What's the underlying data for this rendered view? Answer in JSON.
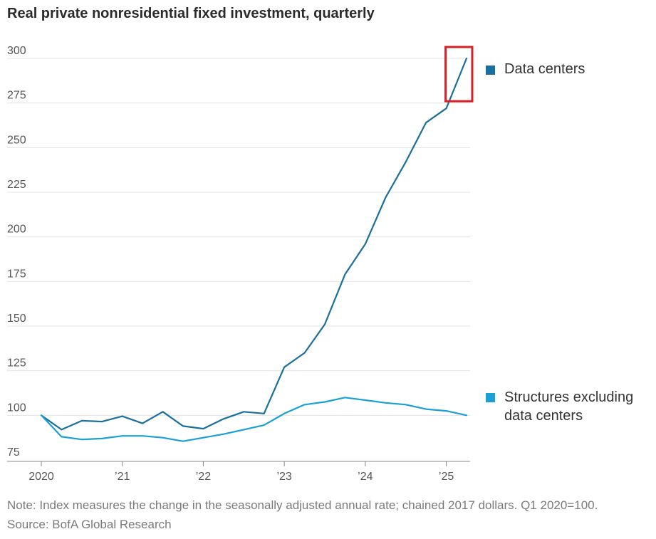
{
  "title": "Real private nonresidential fixed investment, quarterly",
  "note": "Note: Index measures the change in the seasonally adjusted annual rate; chained 2017 dollars. Q1 2020=100.",
  "source": "Source: BofA Global Research",
  "chart_data": {
    "type": "line",
    "x": [
      2020.0,
      2020.25,
      2020.5,
      2020.75,
      2021.0,
      2021.25,
      2021.5,
      2021.75,
      2022.0,
      2022.25,
      2022.5,
      2022.75,
      2023.0,
      2023.25,
      2023.5,
      2023.75,
      2024.0,
      2024.25,
      2024.5,
      2024.75,
      2025.0,
      2025.25
    ],
    "x_ticks": [
      2020,
      2021,
      2022,
      2023,
      2024,
      2025
    ],
    "x_tick_labels": [
      "2020",
      "’21",
      "’22",
      "’23",
      "’24",
      "’25"
    ],
    "y_ticks": [
      75,
      100,
      125,
      150,
      175,
      200,
      225,
      250,
      275,
      300
    ],
    "ylim": [
      75,
      300
    ],
    "xlim": [
      2020.0,
      2025.25
    ],
    "grid": "horizontal",
    "legend_placement": "right",
    "series": [
      {
        "name": "Data centers",
        "color": "#1b6f9c",
        "values": [
          100,
          92,
          97,
          96.5,
          99.5,
          95.5,
          102,
          94,
          92.5,
          98,
          102,
          101,
          127,
          135,
          151,
          179,
          196,
          222,
          242,
          264,
          272,
          300
        ]
      },
      {
        "name": "Structures excluding data centers",
        "color": "#1aa0d6",
        "values": [
          100,
          88,
          86.5,
          87,
          88.5,
          88.5,
          87.5,
          85.5,
          87.5,
          89.5,
          92,
          94.5,
          101,
          106,
          107.5,
          110,
          108.5,
          107,
          106,
          103.5,
          102.5,
          100
        ]
      }
    ],
    "annotations": [
      {
        "type": "highlight-box",
        "color": "#d62027",
        "around": "last Data centers segment"
      }
    ]
  }
}
